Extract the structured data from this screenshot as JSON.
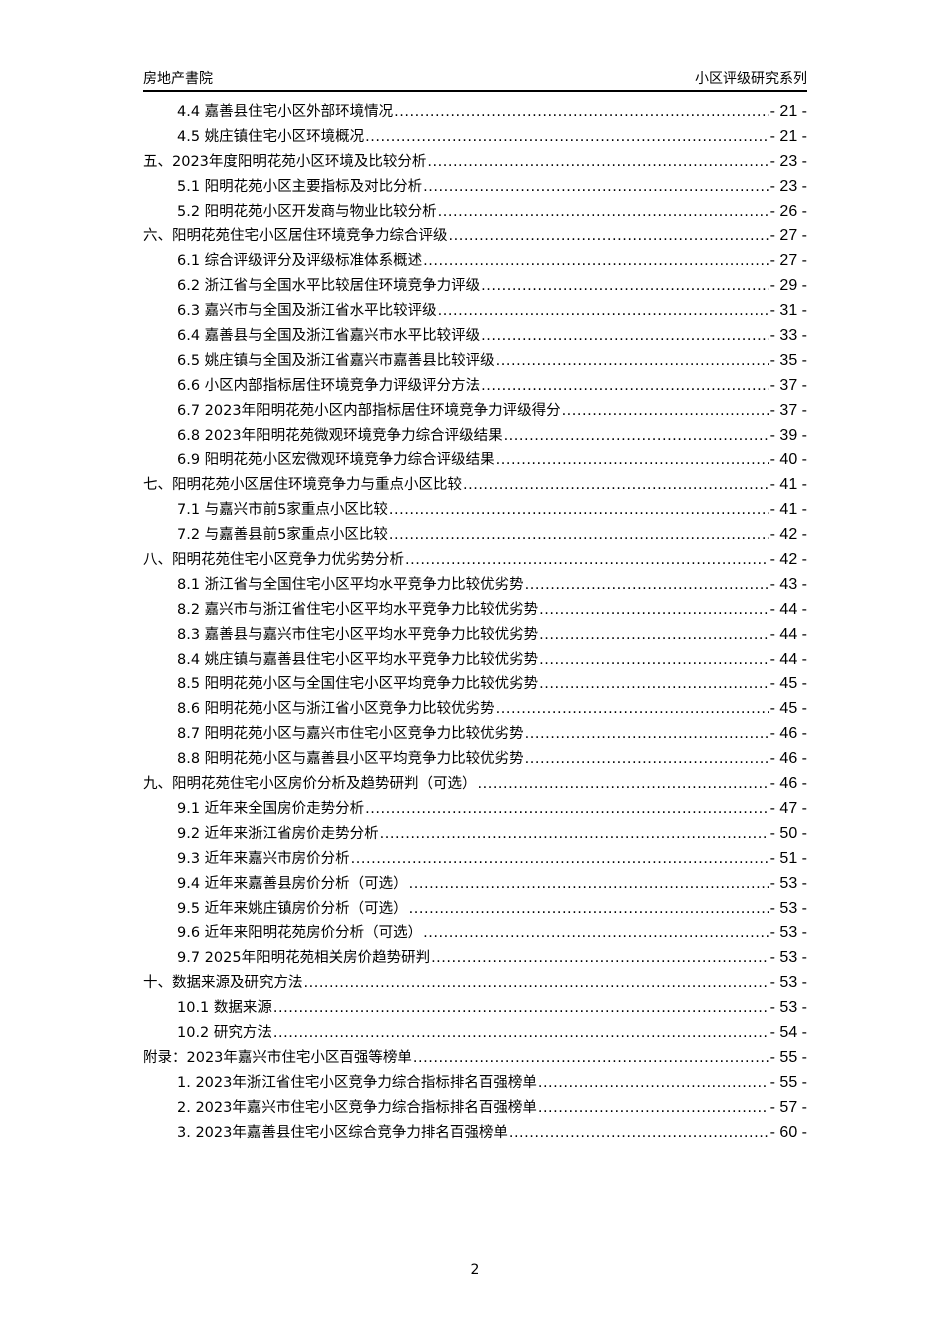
{
  "header": {
    "left": "房地产書院",
    "right": "小区评级研究系列"
  },
  "toc": [
    {
      "level": 2,
      "title": "4.4 嘉善县住宅小区外部环境情况",
      "page": "- 21 -"
    },
    {
      "level": 2,
      "title": "4.5 姚庄镇住宅小区环境概况",
      "page": "- 21 -"
    },
    {
      "level": 1,
      "title": "五、2023年度阳明花苑小区环境及比较分析",
      "page": "- 23 -"
    },
    {
      "level": 2,
      "title": "5.1 阳明花苑小区主要指标及对比分析",
      "page": "- 23 -"
    },
    {
      "level": 2,
      "title": "5.2 阳明花苑小区开发商与物业比较分析",
      "page": "- 26 -"
    },
    {
      "level": 1,
      "title": "六、阳明花苑住宅小区居住环境竞争力综合评级",
      "page": "- 27 -"
    },
    {
      "level": 2,
      "title": "6.1 综合评级评分及评级标准体系概述",
      "page": "- 27 -"
    },
    {
      "level": 2,
      "title": "6.2 浙江省与全国水平比较居住环境竞争力评级",
      "page": "- 29 -"
    },
    {
      "level": 2,
      "title": "6.3 嘉兴市与全国及浙江省水平比较评级",
      "page": "- 31 -"
    },
    {
      "level": 2,
      "title": "6.4 嘉善县与全国及浙江省嘉兴市水平比较评级",
      "page": "- 33 -"
    },
    {
      "level": 2,
      "title": "6.5 姚庄镇与全国及浙江省嘉兴市嘉善县比较评级",
      "page": "- 35 -"
    },
    {
      "level": 2,
      "title": "6.6 小区内部指标居住环境竞争力评级评分方法",
      "page": "- 37 -"
    },
    {
      "level": 2,
      "title": "6.7 2023年阳明花苑小区内部指标居住环境竞争力评级得分",
      "page": "- 37 -"
    },
    {
      "level": 2,
      "title": "6.8 2023年阳明花苑微观环境竞争力综合评级结果",
      "page": "- 39 -"
    },
    {
      "level": 2,
      "title": "6.9 阳明花苑小区宏微观环境竞争力综合评级结果",
      "page": "- 40 -"
    },
    {
      "level": 1,
      "title": "七、阳明花苑小区居住环境竞争力与重点小区比较",
      "page": "- 41 -"
    },
    {
      "level": 2,
      "title": "7.1 与嘉兴市前5家重点小区比较",
      "page": "- 41 -"
    },
    {
      "level": 2,
      "title": "7.2 与嘉善县前5家重点小区比较",
      "page": "- 42 -"
    },
    {
      "level": 1,
      "title": "八、阳明花苑住宅小区竞争力优劣势分析",
      "page": "- 42 -"
    },
    {
      "level": 2,
      "title": "8.1 浙江省与全国住宅小区平均水平竞争力比较优劣势",
      "page": "- 43 -"
    },
    {
      "level": 2,
      "title": "8.2 嘉兴市与浙江省住宅小区平均水平竞争力比较优劣势",
      "page": "- 44 -"
    },
    {
      "level": 2,
      "title": "8.3 嘉善县与嘉兴市住宅小区平均水平竞争力比较优劣势",
      "page": "- 44 -"
    },
    {
      "level": 2,
      "title": "8.4 姚庄镇与嘉善县住宅小区平均水平竞争力比较优劣势",
      "page": "- 44 -"
    },
    {
      "level": 2,
      "title": "8.5 阳明花苑小区与全国住宅小区平均竞争力比较优劣势",
      "page": "- 45 -"
    },
    {
      "level": 2,
      "title": "8.6 阳明花苑小区与浙江省小区竞争力比较优劣势",
      "page": "- 45 -"
    },
    {
      "level": 2,
      "title": "8.7 阳明花苑小区与嘉兴市住宅小区竞争力比较优劣势",
      "page": "- 46 -"
    },
    {
      "level": 2,
      "title": "8.8 阳明花苑小区与嘉善县小区平均竞争力比较优劣势",
      "page": "- 46 -"
    },
    {
      "level": 1,
      "title": "九、阳明花苑住宅小区房价分析及趋势研判（可选）",
      "page": "- 46 -"
    },
    {
      "level": 2,
      "title": "9.1 近年来全国房价走势分析",
      "page": "- 47 -"
    },
    {
      "level": 2,
      "title": "9.2 近年来浙江省房价走势分析",
      "page": "- 50 -"
    },
    {
      "level": 2,
      "title": "9.3 近年来嘉兴市房价分析",
      "page": "- 51 -"
    },
    {
      "level": 2,
      "title": "9.4 近年来嘉善县房价分析（可选）",
      "page": "- 53 -"
    },
    {
      "level": 2,
      "title": "9.5 近年来姚庄镇房价分析（可选）",
      "page": "- 53 -"
    },
    {
      "level": 2,
      "title": "9.6 近年来阳明花苑房价分析（可选）",
      "page": "- 53 -"
    },
    {
      "level": 2,
      "title": "9.7 2025年阳明花苑相关房价趋势研判",
      "page": "- 53 -"
    },
    {
      "level": 1,
      "title": "十、数据来源及研究方法",
      "page": "- 53 -"
    },
    {
      "level": 2,
      "title": "10.1 数据来源",
      "page": "- 53 -"
    },
    {
      "level": 2,
      "title": "10.2 研究方法",
      "page": "- 54 -"
    },
    {
      "level": 1,
      "title": "附录：2023年嘉兴市住宅小区百强等榜单",
      "page": "- 55 -"
    },
    {
      "level": 2,
      "title": "1. 2023年浙江省住宅小区竞争力综合指标排名百强榜单",
      "page": "- 55 -"
    },
    {
      "level": 2,
      "title": "2. 2023年嘉兴市住宅小区竞争力综合指标排名百强榜单",
      "page": "- 57 -"
    },
    {
      "level": 2,
      "title": "3. 2023年嘉善县住宅小区综合竞争力排名百强榜单",
      "page": "- 60 -"
    }
  ],
  "footer": {
    "page_number": "2"
  }
}
